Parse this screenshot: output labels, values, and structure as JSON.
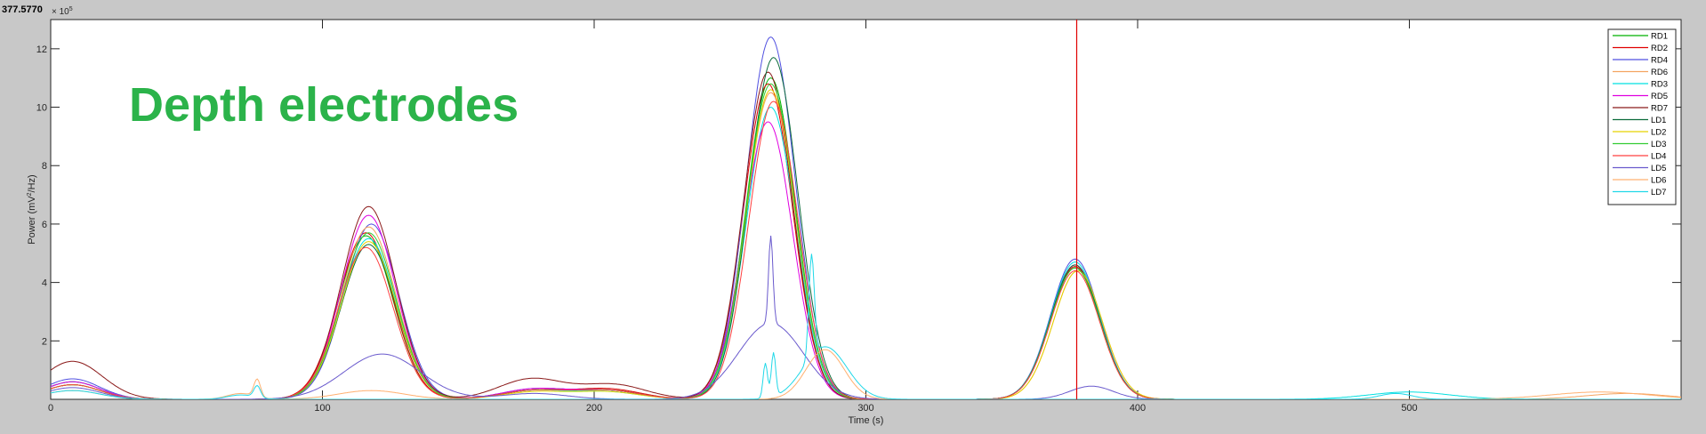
{
  "cursor_readout": "377.5770",
  "overlay_title": "Depth electrodes",
  "colors": {
    "title": "#2bb34a",
    "cursor": "#e00000",
    "background": "#c8c8c8",
    "axes_bg": "#ffffff"
  },
  "chart_data": {
    "type": "line",
    "xlabel": "Time (s)",
    "ylabel_prefix": "Power  (mV",
    "ylabel_sup": "2",
    "ylabel_suffix": "/Hz)",
    "y_exponent_base": "× 10",
    "y_exponent_power": "5",
    "xlim": [
      0,
      600
    ],
    "ylim": [
      0,
      1.3
    ],
    "x_ticks": [
      0,
      100,
      200,
      300,
      400,
      500
    ],
    "x_tick_labels": [
      "0",
      "100",
      "200",
      "300",
      "400",
      "500"
    ],
    "y_ticks": [
      0.2,
      0.4,
      0.6,
      0.8,
      1.0,
      1.2
    ],
    "y_tick_labels": [
      "2",
      "4",
      "6",
      "8",
      "10",
      "12"
    ],
    "cursor_x": 377.577,
    "legend_position": "top-right",
    "grid": false,
    "series": [
      {
        "name": "RD1",
        "color": "#00b000",
        "peaks": [
          [
            8,
            0.06,
            10
          ],
          [
            116,
            0.56,
            10
          ],
          [
            178,
            0.03,
            12
          ],
          [
            205,
            0.03,
            12
          ],
          [
            265,
            1.1,
            9
          ],
          [
            377,
            0.45,
            9
          ]
        ]
      },
      {
        "name": "RD2",
        "color": "#e00000",
        "peaks": [
          [
            8,
            0.05,
            10
          ],
          [
            116,
            0.57,
            10
          ],
          [
            178,
            0.03,
            12
          ],
          [
            205,
            0.035,
            12
          ],
          [
            264,
            1.08,
            9
          ],
          [
            377,
            0.455,
            9
          ]
        ]
      },
      {
        "name": "RD4",
        "color": "#5050e0",
        "peaks": [
          [
            8,
            0.07,
            10
          ],
          [
            118,
            0.6,
            10
          ],
          [
            178,
            0.035,
            12
          ],
          [
            205,
            0.03,
            12
          ],
          [
            265,
            1.24,
            9
          ],
          [
            377,
            0.48,
            9
          ]
        ]
      },
      {
        "name": "RD6",
        "color": "#f4a460",
        "peaks": [
          [
            8,
            0.06,
            10
          ],
          [
            117,
            0.59,
            10
          ],
          [
            178,
            0.03,
            12
          ],
          [
            205,
            0.03,
            12
          ],
          [
            265,
            1.05,
            9
          ],
          [
            378,
            0.44,
            9
          ],
          [
            580,
            0.02,
            15
          ]
        ]
      },
      {
        "name": "RD3",
        "color": "#00e0e0",
        "peaks": [
          [
            8,
            0.06,
            10
          ],
          [
            117,
            0.55,
            10
          ],
          [
            178,
            0.03,
            12
          ],
          [
            205,
            0.025,
            12
          ],
          [
            265,
            1.0,
            9
          ],
          [
            377,
            0.47,
            9
          ],
          [
            500,
            0.025,
            15
          ]
        ]
      },
      {
        "name": "RD5",
        "color": "#e000e0",
        "peaks": [
          [
            8,
            0.06,
            10
          ],
          [
            117,
            0.63,
            10
          ],
          [
            178,
            0.035,
            12
          ],
          [
            205,
            0.03,
            12
          ],
          [
            264,
            0.95,
            9
          ],
          [
            377,
            0.46,
            9
          ]
        ]
      },
      {
        "name": "RD7",
        "color": "#8b1a1a",
        "peaks": [
          [
            8,
            0.13,
            11
          ],
          [
            117,
            0.66,
            10
          ],
          [
            177,
            0.07,
            12
          ],
          [
            207,
            0.05,
            12
          ],
          [
            264,
            1.12,
            9
          ],
          [
            377,
            0.45,
            9
          ]
        ]
      },
      {
        "name": "LD1",
        "color": "#0b6b3a",
        "peaks": [
          [
            8,
            0.05,
            10
          ],
          [
            117,
            0.53,
            10
          ],
          [
            178,
            0.03,
            12
          ],
          [
            205,
            0.03,
            12
          ],
          [
            266,
            1.17,
            9
          ],
          [
            377,
            0.46,
            9
          ]
        ]
      },
      {
        "name": "LD2",
        "color": "#e6d200",
        "peaks": [
          [
            8,
            0.05,
            10
          ],
          [
            117,
            0.54,
            10
          ],
          [
            178,
            0.025,
            12
          ],
          [
            205,
            0.025,
            12
          ],
          [
            265,
            1.06,
            9
          ],
          [
            378,
            0.44,
            9
          ]
        ]
      },
      {
        "name": "LD3",
        "color": "#33cc33",
        "peaks": [
          [
            8,
            0.05,
            10
          ],
          [
            117,
            0.57,
            10
          ],
          [
            178,
            0.03,
            12
          ],
          [
            205,
            0.03,
            12
          ],
          [
            265,
            1.08,
            9
          ],
          [
            377,
            0.45,
            9
          ]
        ]
      },
      {
        "name": "LD4",
        "color": "#ff4040",
        "peaks": [
          [
            8,
            0.05,
            10
          ],
          [
            116,
            0.52,
            10
          ],
          [
            178,
            0.03,
            12
          ],
          [
            205,
            0.03,
            12
          ],
          [
            266,
            1.02,
            9
          ],
          [
            377,
            0.44,
            9
          ]
        ]
      },
      {
        "name": "LD5",
        "color": "#6a5acd",
        "peaks": [
          [
            8,
            0.04,
            10
          ],
          [
            122,
            0.155,
            14
          ],
          [
            178,
            0.02,
            12
          ],
          [
            265,
            0.26,
            12
          ],
          [
            265,
            0.3,
            0.8
          ],
          [
            383,
            0.045,
            8
          ]
        ]
      },
      {
        "name": "LD6",
        "color": "#ffb070",
        "peaks": [
          [
            8,
            0.03,
            10
          ],
          [
            76,
            0.06,
            1.2
          ],
          [
            70,
            0.02,
            5
          ],
          [
            118,
            0.03,
            12
          ],
          [
            285,
            0.17,
            7
          ],
          [
            570,
            0.025,
            18
          ]
        ]
      },
      {
        "name": "LD7",
        "color": "#20d8e8",
        "peaks": [
          [
            8,
            0.03,
            10
          ],
          [
            76,
            0.04,
            1.2
          ],
          [
            70,
            0.015,
            5
          ],
          [
            263,
            0.12,
            0.8
          ],
          [
            266,
            0.15,
            0.8
          ],
          [
            280,
            0.35,
            1
          ],
          [
            285,
            0.18,
            8
          ],
          [
            495,
            0.02,
            6
          ]
        ]
      }
    ]
  }
}
